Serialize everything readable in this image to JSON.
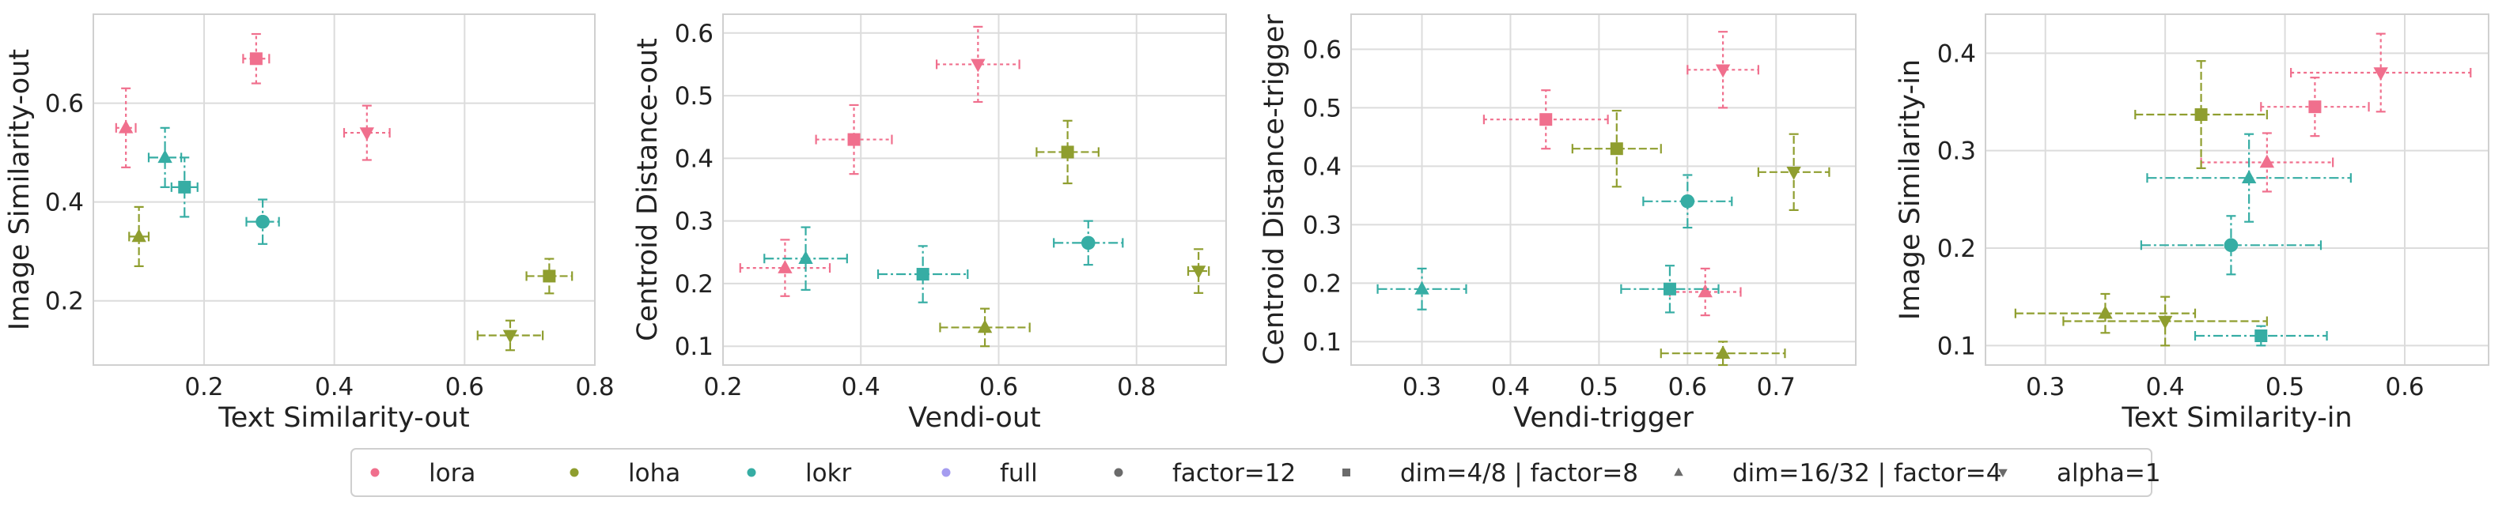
{
  "colors": {
    "lora": "#f06f8d",
    "loha": "#8f9e2f",
    "lokr": "#36ada4",
    "full": "#a59cf0",
    "neutral": "#6b6b6b",
    "grid": "#dcdcdc",
    "frame": "#d0d0d0"
  },
  "legend": {
    "placement": "bottom-center",
    "entries": [
      {
        "label": "lora",
        "marker": "circle",
        "color": "lora"
      },
      {
        "label": "loha",
        "marker": "circle",
        "color": "loha"
      },
      {
        "label": "lokr",
        "marker": "circle",
        "color": "lokr"
      },
      {
        "label": "full",
        "marker": "circle",
        "color": "full"
      },
      {
        "label": "factor=12",
        "marker": "circle",
        "color": "neutral"
      },
      {
        "label": "dim=4/8 | factor=8",
        "marker": "square",
        "color": "neutral"
      },
      {
        "label": "dim=16/32 | factor=4",
        "marker": "triangle-up",
        "color": "neutral"
      },
      {
        "label": "alpha=1",
        "marker": "triangle-down",
        "color": "neutral"
      }
    ]
  },
  "chart_data": [
    {
      "type": "scatter",
      "xlabel": "Text Similarity-out",
      "ylabel": "Image Similarity-out",
      "xlim": [
        0.03,
        0.8
      ],
      "ylim": [
        0.07,
        0.78
      ],
      "xticks": [
        0.2,
        0.4,
        0.6,
        0.8
      ],
      "yticks": [
        0.2,
        0.4,
        0.6
      ],
      "tick_labels_x": [
        "0.2",
        "0.4",
        "0.6",
        "0.8"
      ],
      "tick_labels_y": [
        "0.2",
        "0.4",
        "0.6"
      ],
      "grid": true,
      "points": [
        {
          "algo": "lora",
          "marker": "square",
          "x": 0.28,
          "xerr": 0.02,
          "y": 0.69,
          "yerr": 0.05
        },
        {
          "algo": "lora",
          "marker": "triangle-up",
          "x": 0.08,
          "xerr": 0.015,
          "y": 0.55,
          "yerr": 0.08
        },
        {
          "algo": "lora",
          "marker": "triangle-down",
          "x": 0.45,
          "xerr": 0.035,
          "y": 0.54,
          "yerr": 0.055
        },
        {
          "algo": "loha",
          "marker": "square",
          "x": 0.73,
          "xerr": 0.035,
          "y": 0.25,
          "yerr": 0.035
        },
        {
          "algo": "loha",
          "marker": "triangle-up",
          "x": 0.1,
          "xerr": 0.015,
          "y": 0.33,
          "yerr": 0.06
        },
        {
          "algo": "loha",
          "marker": "triangle-down",
          "x": 0.67,
          "xerr": 0.05,
          "y": 0.13,
          "yerr": 0.03
        },
        {
          "algo": "lokr",
          "marker": "circle",
          "x": 0.29,
          "xerr": 0.025,
          "y": 0.36,
          "yerr": 0.045
        },
        {
          "algo": "lokr",
          "marker": "square",
          "x": 0.17,
          "xerr": 0.02,
          "y": 0.43,
          "yerr": 0.06
        },
        {
          "algo": "lokr",
          "marker": "triangle-up",
          "x": 0.14,
          "xerr": 0.025,
          "y": 0.49,
          "yerr": 0.06
        }
      ]
    },
    {
      "type": "scatter",
      "xlabel": "Vendi-out",
      "ylabel": "Centroid Distance-out",
      "xlim": [
        0.2,
        0.93
      ],
      "ylim": [
        0.07,
        0.63
      ],
      "xticks": [
        0.2,
        0.4,
        0.6,
        0.8
      ],
      "yticks": [
        0.1,
        0.2,
        0.3,
        0.4,
        0.5,
        0.6
      ],
      "tick_labels_x": [
        "0.2",
        "0.4",
        "0.6",
        "0.8"
      ],
      "tick_labels_y": [
        "0.1",
        "0.2",
        "0.3",
        "0.4",
        "0.5",
        "0.6"
      ],
      "grid": true,
      "points": [
        {
          "algo": "lora",
          "marker": "square",
          "x": 0.39,
          "xerr": 0.055,
          "y": 0.43,
          "yerr": 0.055
        },
        {
          "algo": "lora",
          "marker": "triangle-up",
          "x": 0.29,
          "xerr": 0.065,
          "y": 0.225,
          "yerr": 0.045
        },
        {
          "algo": "lora",
          "marker": "triangle-down",
          "x": 0.57,
          "xerr": 0.06,
          "y": 0.55,
          "yerr": 0.06
        },
        {
          "algo": "loha",
          "marker": "square",
          "x": 0.7,
          "xerr": 0.045,
          "y": 0.41,
          "yerr": 0.05
        },
        {
          "algo": "loha",
          "marker": "triangle-up",
          "x": 0.58,
          "xerr": 0.065,
          "y": 0.13,
          "yerr": 0.03
        },
        {
          "algo": "loha",
          "marker": "triangle-down",
          "x": 0.89,
          "xerr": 0.015,
          "y": 0.22,
          "yerr": 0.035
        },
        {
          "algo": "lokr",
          "marker": "circle",
          "x": 0.73,
          "xerr": 0.05,
          "y": 0.265,
          "yerr": 0.035
        },
        {
          "algo": "lokr",
          "marker": "square",
          "x": 0.49,
          "xerr": 0.065,
          "y": 0.215,
          "yerr": 0.045
        },
        {
          "algo": "lokr",
          "marker": "triangle-up",
          "x": 0.32,
          "xerr": 0.06,
          "y": 0.24,
          "yerr": 0.05
        }
      ]
    },
    {
      "type": "scatter",
      "xlabel": "Vendi-trigger",
      "ylabel": "Centroid Distance-trigger",
      "xlim": [
        0.22,
        0.79
      ],
      "ylim": [
        0.06,
        0.66
      ],
      "xticks": [
        0.3,
        0.4,
        0.5,
        0.6,
        0.7
      ],
      "yticks": [
        0.1,
        0.2,
        0.3,
        0.4,
        0.5,
        0.6
      ],
      "tick_labels_x": [
        "0.3",
        "0.4",
        "0.5",
        "0.6",
        "0.7"
      ],
      "tick_labels_y": [
        "0.1",
        "0.2",
        "0.3",
        "0.4",
        "0.5",
        "0.6"
      ],
      "grid": true,
      "points": [
        {
          "algo": "lora",
          "marker": "square",
          "x": 0.44,
          "xerr": 0.07,
          "y": 0.48,
          "yerr": 0.05
        },
        {
          "algo": "lora",
          "marker": "triangle-down",
          "x": 0.64,
          "xerr": 0.04,
          "y": 0.565,
          "yerr": 0.065
        },
        {
          "algo": "lora",
          "marker": "triangle-up",
          "x": 0.62,
          "xerr": 0.04,
          "y": 0.185,
          "yerr": 0.04
        },
        {
          "algo": "loha",
          "marker": "square",
          "x": 0.52,
          "xerr": 0.05,
          "y": 0.43,
          "yerr": 0.065
        },
        {
          "algo": "loha",
          "marker": "triangle-down",
          "x": 0.72,
          "xerr": 0.04,
          "y": 0.39,
          "yerr": 0.065
        },
        {
          "algo": "loha",
          "marker": "triangle-up",
          "x": 0.64,
          "xerr": 0.07,
          "y": 0.08,
          "yerr": 0.02
        },
        {
          "algo": "lokr",
          "marker": "circle",
          "x": 0.6,
          "xerr": 0.05,
          "y": 0.34,
          "yerr": 0.045
        },
        {
          "algo": "lokr",
          "marker": "square",
          "x": 0.58,
          "xerr": 0.055,
          "y": 0.19,
          "yerr": 0.04
        },
        {
          "algo": "lokr",
          "marker": "triangle-up",
          "x": 0.3,
          "xerr": 0.05,
          "y": 0.19,
          "yerr": 0.035
        }
      ]
    },
    {
      "type": "scatter",
      "xlabel": "Text Similarity-in",
      "ylabel": "Image Similarity-in",
      "xlim": [
        0.25,
        0.67
      ],
      "ylim": [
        0.08,
        0.44
      ],
      "xticks": [
        0.3,
        0.4,
        0.5,
        0.6
      ],
      "yticks": [
        0.1,
        0.2,
        0.3,
        0.4
      ],
      "tick_labels_x": [
        "0.3",
        "0.4",
        "0.5",
        "0.6"
      ],
      "tick_labels_y": [
        "0.1",
        "0.2",
        "0.3",
        "0.4"
      ],
      "grid": true,
      "points": [
        {
          "algo": "lora",
          "marker": "triangle-down",
          "x": 0.58,
          "xerr": 0.075,
          "y": 0.38,
          "yerr": 0.04
        },
        {
          "algo": "lora",
          "marker": "square",
          "x": 0.525,
          "xerr": 0.045,
          "y": 0.345,
          "yerr": 0.03
        },
        {
          "algo": "lora",
          "marker": "triangle-up",
          "x": 0.485,
          "xerr": 0.055,
          "y": 0.288,
          "yerr": 0.03
        },
        {
          "algo": "loha",
          "marker": "square",
          "x": 0.43,
          "xerr": 0.055,
          "y": 0.337,
          "yerr": 0.055
        },
        {
          "algo": "loha",
          "marker": "triangle-up",
          "x": 0.35,
          "xerr": 0.075,
          "y": 0.133,
          "yerr": 0.02
        },
        {
          "algo": "loha",
          "marker": "triangle-down",
          "x": 0.4,
          "xerr": 0.085,
          "y": 0.125,
          "yerr": 0.025
        },
        {
          "algo": "lokr",
          "marker": "circle",
          "x": 0.455,
          "xerr": 0.075,
          "y": 0.203,
          "yerr": 0.03
        },
        {
          "algo": "lokr",
          "marker": "square",
          "x": 0.48,
          "xerr": 0.055,
          "y": 0.11,
          "yerr": 0.01
        },
        {
          "algo": "lokr",
          "marker": "triangle-up",
          "x": 0.47,
          "xerr": 0.085,
          "y": 0.272,
          "yerr": 0.045
        }
      ]
    }
  ]
}
